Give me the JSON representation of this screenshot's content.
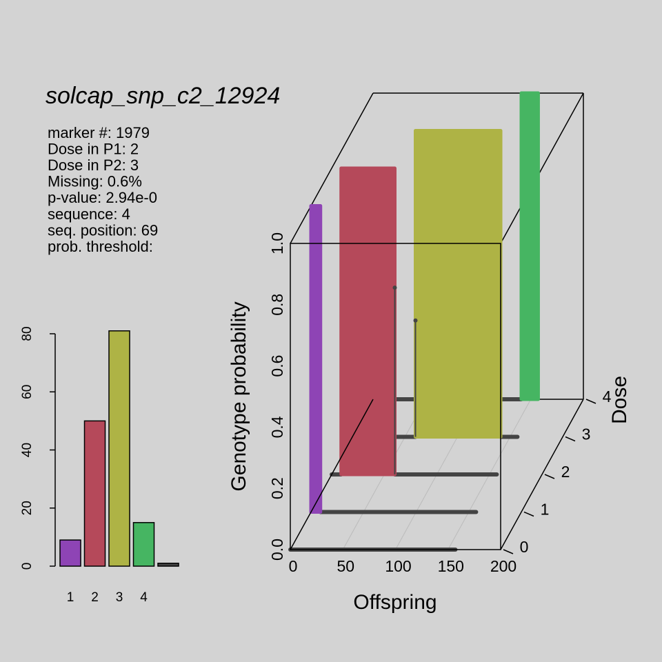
{
  "panel": {
    "title": "solcap_snp_c2_12924",
    "lines": [
      "marker #: 1979",
      "Dose in P1: 2",
      "Dose in P2: 3",
      "Missing: 0.6%",
      "p-value: 2.94e-0",
      "sequence: 4",
      "seq. position: 69",
      "prob. threshold:"
    ]
  },
  "chart_data": [
    {
      "type": "bar",
      "categories": [
        "1",
        "2",
        "3",
        "4",
        null
      ],
      "values": [
        9,
        50,
        81,
        15,
        1
      ],
      "colors": [
        "#8e44b5",
        "#b5495a",
        "#aeb345",
        "#46b562",
        "#444444"
      ],
      "ylim": [
        0,
        80
      ],
      "yticks": [
        0,
        20,
        40,
        60,
        80
      ]
    },
    {
      "type": "ribbon3d",
      "x_label": "Offspring",
      "y_label": "Genotype probability",
      "z_label": "Dose",
      "xlim": [
        0,
        200
      ],
      "xticks": [
        0,
        50,
        100,
        150,
        200
      ],
      "ylim": [
        0,
        1
      ],
      "yticks": [
        {
          "value": 0,
          "label": "0.0"
        },
        0.2,
        0.4,
        0.6,
        0.8,
        {
          "value": 1,
          "label": "1.0"
        }
      ],
      "zlim": [
        0,
        4
      ],
      "zticks": [
        0,
        1,
        2,
        3,
        4
      ],
      "grid": true,
      "line_color": "#444444",
      "series": [
        {
          "dose": 1,
          "color": "#8e44b5",
          "x": [
            0,
            9
          ],
          "values": [
            1,
            1
          ]
        },
        {
          "dose": 2,
          "color": "#b5495a",
          "x": [
            9,
            60
          ],
          "values": [
            1,
            1
          ]
        },
        {
          "dose": 3,
          "color": "#aeb345",
          "x": [
            60,
            141
          ],
          "values": [
            1,
            1
          ]
        },
        {
          "dose": 4,
          "color": "#46b562",
          "x": [
            141,
            157
          ],
          "values": [
            1,
            1
          ]
        }
      ],
      "zero_lines": [
        {
          "dose": 0,
          "x": [
            0,
            157
          ],
          "values": [
            0,
            0
          ]
        },
        {
          "dose": 1,
          "x": [
            9,
            157
          ],
          "values": [
            0,
            0
          ]
        },
        {
          "dose": 2,
          "x": [
            0,
            9
          ],
          "values": [
            0,
            0
          ]
        },
        {
          "dose": 2,
          "x": [
            60,
            157
          ],
          "values": [
            0,
            0
          ]
        },
        {
          "dose": 3,
          "x": [
            0,
            60
          ],
          "values": [
            0,
            0
          ]
        },
        {
          "dose": 3,
          "x": [
            141,
            157
          ],
          "values": [
            0,
            0
          ]
        },
        {
          "dose": 4,
          "x": [
            0,
            141
          ],
          "values": [
            0,
            0
          ]
        }
      ],
      "spikes": [
        {
          "dose": 2,
          "x": 60,
          "value": 0.61
        },
        {
          "dose": 3,
          "x": 60,
          "value": 0.38
        }
      ]
    }
  ]
}
